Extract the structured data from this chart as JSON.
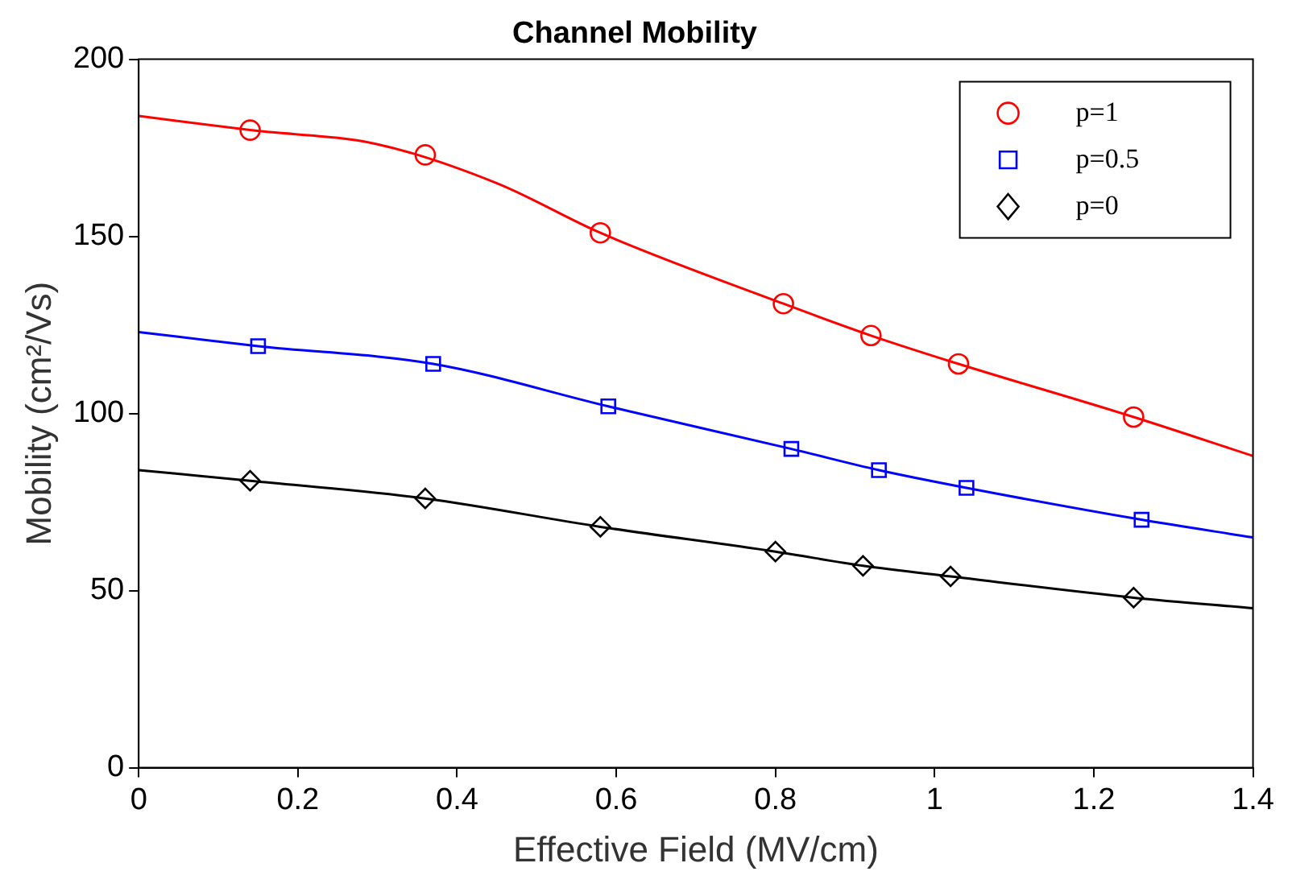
{
  "chart_data": {
    "type": "scatter",
    "title": "Channel Mobility",
    "xlabel": "Effective Field (MV/cm)",
    "ylabel": "Mobility (cm²/Vs)",
    "xlim": [
      0,
      1.4
    ],
    "xticks": [
      0,
      0.2,
      0.4,
      0.6,
      0.8,
      1,
      1.2,
      1.4
    ],
    "ylim": [
      0,
      200
    ],
    "yticks": [
      0,
      50,
      100,
      150,
      200
    ],
    "grid": false,
    "legend": "top right",
    "series": [
      {
        "name": "p=1",
        "marker": "circle",
        "color": "#ff0000",
        "x": [
          0.14,
          0.36,
          0.58,
          0.81,
          0.92,
          1.03,
          1.25
        ],
        "values": [
          180,
          173,
          151,
          131,
          122,
          114,
          99
        ]
      },
      {
        "name": "p=0.5",
        "marker": "square",
        "color": "#0000ff",
        "x": [
          0.15,
          0.37,
          0.59,
          0.82,
          0.93,
          1.04,
          1.26
        ],
        "values": [
          119,
          114,
          102,
          90,
          84,
          79,
          70
        ]
      },
      {
        "name": "p=0",
        "marker": "diamond",
        "color": "#000000",
        "x": [
          0.14,
          0.36,
          0.58,
          0.8,
          0.91,
          1.02,
          1.25
        ],
        "values": [
          81,
          76,
          68,
          61,
          57,
          54,
          48
        ]
      },
      {
        "type": "line",
        "marker": "none",
        "color": "#ff0000",
        "x": [
          0,
          0.14,
          0.3,
          0.45,
          0.58,
          0.81,
          0.92,
          1.03,
          1.25,
          1.4
        ],
        "values": [
          184,
          180,
          176,
          165,
          151,
          131,
          122,
          114,
          99,
          88
        ]
      },
      {
        "type": "line",
        "marker": "none",
        "color": "#0000ff",
        "x": [
          0,
          0.15,
          0.37,
          0.59,
          0.82,
          0.93,
          1.04,
          1.26,
          1.4
        ],
        "values": [
          123,
          119,
          114,
          102,
          90,
          84,
          79,
          70,
          65
        ]
      },
      {
        "type": "line",
        "marker": "none",
        "color": "#000000",
        "x": [
          0,
          0.14,
          0.36,
          0.58,
          0.8,
          0.91,
          1.02,
          1.25,
          1.4
        ],
        "values": [
          84,
          81,
          76,
          68,
          61,
          57,
          54,
          48,
          45
        ]
      }
    ]
  }
}
